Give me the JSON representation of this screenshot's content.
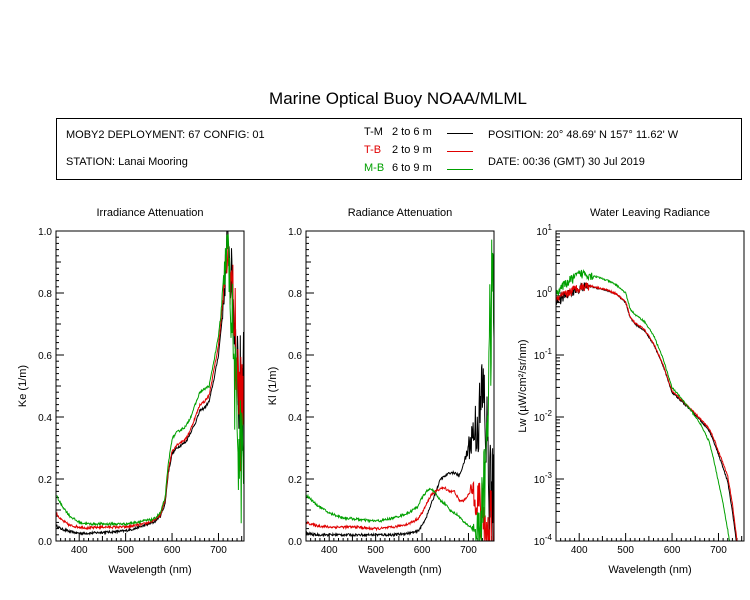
{
  "title": "Marine Optical Buoy NOAA/MLML",
  "info": {
    "deployment": "MOBY2 DEPLOYMENT: 67 CONFIG: 01",
    "station": "STATION: Lanai Mooring",
    "position": "POSITION: 20° 48.69' N   157° 11.62' W",
    "date": "DATE: 00:36 (GMT) 30 Jul 2019"
  },
  "legend": [
    {
      "code": "T-M",
      "range": "2 to 6  m",
      "color": "#000000"
    },
    {
      "code": "T-B",
      "range": "2 to 9  m",
      "color": "#e00000"
    },
    {
      "code": "M-B",
      "range": "6 to 9  m",
      "color": "#00a000"
    }
  ],
  "chart_data": [
    {
      "type": "line",
      "title": "Irradiance Attenuation",
      "xlabel": "Wavelength (nm)",
      "ylabel": "Ke  (1/m)",
      "xlim": [
        350,
        755
      ],
      "ylim": [
        0,
        1.0
      ],
      "xticks": [
        400,
        500,
        600,
        700
      ],
      "yticks": [
        0.0,
        0.2,
        0.4,
        0.6,
        0.8,
        1.0
      ],
      "yticklabels": [
        "0.0",
        "0.2",
        "0.4",
        "0.6",
        "0.8",
        "1.0"
      ],
      "series": [
        {
          "name": "T-M",
          "color": "#000000",
          "noisy_from": 705,
          "x": [
            350,
            360,
            380,
            400,
            420,
            450,
            480,
            500,
            520,
            540,
            560,
            575,
            585,
            592,
            600,
            610,
            620,
            630,
            640,
            650,
            660,
            670,
            680,
            690,
            700,
            710,
            715,
            720,
            725,
            730,
            735,
            740,
            745,
            750,
            755
          ],
          "y": [
            0.05,
            0.04,
            0.03,
            0.025,
            0.025,
            0.028,
            0.03,
            0.033,
            0.04,
            0.05,
            0.06,
            0.08,
            0.12,
            0.22,
            0.28,
            0.3,
            0.31,
            0.32,
            0.35,
            0.38,
            0.42,
            0.43,
            0.45,
            0.52,
            0.6,
            0.75,
            0.85,
            1.0,
            0.88,
            0.8,
            0.7,
            0.6,
            0.45,
            0.5,
            0.55
          ]
        },
        {
          "name": "T-B",
          "color": "#e00000",
          "noisy_from": 705,
          "x": [
            350,
            360,
            380,
            400,
            420,
            450,
            480,
            500,
            520,
            540,
            560,
            575,
            585,
            592,
            600,
            610,
            620,
            630,
            640,
            650,
            660,
            670,
            680,
            690,
            700,
            710,
            715,
            720,
            725,
            730,
            735,
            740,
            745,
            750,
            755
          ],
          "y": [
            0.09,
            0.07,
            0.05,
            0.045,
            0.042,
            0.045,
            0.045,
            0.045,
            0.05,
            0.055,
            0.065,
            0.085,
            0.13,
            0.23,
            0.29,
            0.31,
            0.32,
            0.33,
            0.36,
            0.4,
            0.44,
            0.45,
            0.47,
            0.55,
            0.63,
            0.78,
            0.88,
            0.92,
            0.86,
            0.8,
            0.7,
            0.55,
            0.45,
            0.4,
            0.45
          ]
        },
        {
          "name": "M-B",
          "color": "#00a000",
          "noisy_from": 700,
          "x": [
            350,
            360,
            380,
            400,
            420,
            450,
            480,
            500,
            520,
            540,
            560,
            575,
            585,
            592,
            600,
            610,
            620,
            630,
            640,
            650,
            660,
            670,
            680,
            690,
            700,
            710,
            715,
            720,
            725,
            730,
            735,
            740,
            745,
            750,
            755
          ],
          "y": [
            0.15,
            0.12,
            0.08,
            0.06,
            0.055,
            0.055,
            0.055,
            0.055,
            0.06,
            0.065,
            0.07,
            0.09,
            0.14,
            0.25,
            0.33,
            0.35,
            0.36,
            0.37,
            0.4,
            0.44,
            0.48,
            0.49,
            0.5,
            0.58,
            0.66,
            0.8,
            0.9,
            0.95,
            0.8,
            0.7,
            0.5,
            0.4,
            0.3,
            0.25,
            0.3
          ]
        }
      ]
    },
    {
      "type": "line",
      "title": "Radiance Attenuation",
      "xlabel": "Wavelength (nm)",
      "ylabel": "Kl  (1/m)",
      "xlim": [
        350,
        755
      ],
      "ylim": [
        0,
        1.0
      ],
      "xticks": [
        400,
        500,
        600,
        700
      ],
      "yticks": [
        0.0,
        0.2,
        0.4,
        0.6,
        0.8,
        1.0
      ],
      "yticklabels": [
        "0.0",
        "0.2",
        "0.4",
        "0.6",
        "0.8",
        "1.0"
      ],
      "series": [
        {
          "name": "T-M",
          "color": "#000000",
          "noisy_from": 690,
          "x": [
            350,
            370,
            400,
            430,
            460,
            490,
            510,
            540,
            570,
            590,
            600,
            610,
            620,
            630,
            640,
            650,
            660,
            670,
            680,
            690,
            700,
            710,
            720,
            725,
            730,
            735,
            740,
            745,
            750,
            755
          ],
          "y": [
            0.025,
            0.02,
            0.02,
            0.02,
            0.02,
            0.02,
            0.02,
            0.02,
            0.025,
            0.03,
            0.05,
            0.08,
            0.12,
            0.16,
            0.2,
            0.21,
            0.22,
            0.22,
            0.21,
            0.25,
            0.3,
            0.35,
            0.38,
            0.4,
            0.5,
            0.42,
            0.3,
            0.2,
            0.1,
            0.05
          ]
        },
        {
          "name": "T-B",
          "color": "#e00000",
          "noisy_from": 700,
          "x": [
            350,
            370,
            400,
            430,
            460,
            490,
            510,
            540,
            570,
            590,
            600,
            610,
            620,
            630,
            640,
            650,
            660,
            670,
            680,
            690,
            700,
            710,
            720,
            725,
            730,
            735,
            740,
            745,
            750,
            755
          ],
          "y": [
            0.06,
            0.05,
            0.045,
            0.045,
            0.045,
            0.04,
            0.04,
            0.045,
            0.055,
            0.07,
            0.09,
            0.12,
            0.15,
            0.16,
            0.17,
            0.17,
            0.16,
            0.16,
            0.13,
            0.13,
            0.15,
            0.17,
            0.14,
            0.1,
            0.05,
            0.03,
            0.02,
            0.02,
            0.02,
            0.02
          ]
        },
        {
          "name": "M-B",
          "color": "#00a000",
          "noisy_from": 705,
          "x": [
            350,
            370,
            400,
            430,
            460,
            490,
            510,
            540,
            570,
            590,
            600,
            610,
            620,
            630,
            640,
            650,
            660,
            670,
            680,
            690,
            700,
            710,
            720,
            725,
            730,
            735,
            740,
            745,
            750,
            755
          ],
          "y": [
            0.15,
            0.12,
            0.09,
            0.075,
            0.07,
            0.065,
            0.065,
            0.075,
            0.09,
            0.11,
            0.14,
            0.16,
            0.17,
            0.15,
            0.13,
            0.12,
            0.1,
            0.09,
            0.08,
            0.06,
            0.05,
            0.04,
            0.03,
            0.05,
            0.1,
            0.2,
            0.4,
            0.6,
            0.75,
            0.8
          ]
        }
      ]
    },
    {
      "type": "line",
      "title": "Water Leaving Radiance",
      "xlabel": "Wavelength (nm)",
      "ylabel": "Lw  (µW/cm²/sr/nm)",
      "xlim": [
        350,
        755
      ],
      "ylim": [
        0.0001,
        10
      ],
      "yscale": "log",
      "xticks": [
        400,
        500,
        600,
        700
      ],
      "ytick_exponents": [
        1,
        0,
        -1,
        -2,
        -3,
        -4
      ],
      "series": [
        {
          "name": "T-M",
          "color": "#000000",
          "noisy_to": 420,
          "x": [
            350,
            360,
            370,
            380,
            390,
            400,
            410,
            420,
            440,
            460,
            480,
            500,
            510,
            520,
            540,
            560,
            580,
            600,
            620,
            640,
            660,
            680,
            690,
            700,
            710,
            720,
            730,
            740
          ],
          "y": [
            0.7,
            0.8,
            0.9,
            1.0,
            1.1,
            1.2,
            1.25,
            1.3,
            1.2,
            1.1,
            0.95,
            0.7,
            0.4,
            0.32,
            0.25,
            0.15,
            0.07,
            0.025,
            0.018,
            0.013,
            0.009,
            0.006,
            0.004,
            0.0025,
            0.0015,
            0.0009,
            0.0003,
            8e-05
          ]
        },
        {
          "name": "T-B",
          "color": "#e00000",
          "noisy_to": 420,
          "x": [
            350,
            360,
            370,
            380,
            390,
            400,
            410,
            420,
            440,
            460,
            480,
            500,
            510,
            520,
            540,
            560,
            580,
            600,
            620,
            640,
            660,
            680,
            690,
            700,
            710,
            720,
            730,
            740
          ],
          "y": [
            0.75,
            0.85,
            0.95,
            1.05,
            1.15,
            1.25,
            1.28,
            1.32,
            1.22,
            1.12,
            0.97,
            0.72,
            0.41,
            0.33,
            0.26,
            0.155,
            0.072,
            0.026,
            0.019,
            0.0135,
            0.0095,
            0.0065,
            0.0045,
            0.0028,
            0.0018,
            0.0011,
            0.0004,
            0.0001
          ]
        },
        {
          "name": "M-B",
          "color": "#00a000",
          "noisy_to": 430,
          "x": [
            350,
            360,
            370,
            380,
            390,
            400,
            410,
            420,
            440,
            460,
            480,
            500,
            510,
            520,
            540,
            560,
            580,
            600,
            620,
            640,
            660,
            680,
            690,
            700,
            710,
            720,
            730
          ],
          "y": [
            1.0,
            1.2,
            1.4,
            1.6,
            1.8,
            2.0,
            2.1,
            2.0,
            1.8,
            1.6,
            1.35,
            1.0,
            0.55,
            0.45,
            0.35,
            0.21,
            0.09,
            0.03,
            0.02,
            0.013,
            0.008,
            0.004,
            0.002,
            0.0009,
            0.0004,
            0.00015,
            5e-05
          ]
        }
      ]
    }
  ]
}
